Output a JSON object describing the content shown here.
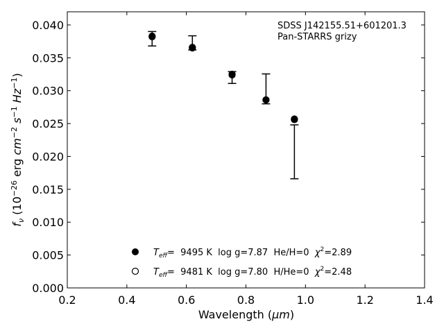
{
  "chart_data": {
    "type": "scatter",
    "annotation": [
      "SDSS J142155.51+601201.3",
      "Pan-STARRS grizy"
    ],
    "xlabel": {
      "main": "Wavelength (",
      "unit": "μm",
      "end": ")"
    },
    "ylabel": {
      "f": "f",
      "sub": "ν",
      "open": " (10",
      "exp": "−26",
      "erg": " erg ",
      "cm": "cm",
      "cmexp": "−2",
      "s": " s",
      "sexp": "−1",
      "hz": " Hz",
      "hzexp": "−1",
      "close": ")"
    },
    "xlim": [
      0.2,
      1.4
    ],
    "ylim": [
      0.0,
      0.042
    ],
    "xticks": [
      0.2,
      0.4,
      0.6,
      0.8,
      1.0,
      1.2,
      1.4
    ],
    "xtick_labels": [
      "0.2",
      "0.4",
      "0.6",
      "0.8",
      "1.0",
      "1.2",
      "1.4"
    ],
    "yticks": [
      0.0,
      0.005,
      0.01,
      0.015,
      0.02,
      0.025,
      0.03,
      0.035,
      0.04
    ],
    "ytick_labels": [
      "0.000",
      "0.005",
      "0.010",
      "0.015",
      "0.020",
      "0.025",
      "0.030",
      "0.035",
      "0.040"
    ],
    "observed": {
      "x": [
        0.4849,
        0.6201,
        0.7535,
        0.8674,
        0.9628
      ],
      "y": [
        0.0379,
        0.03655,
        0.032,
        0.02845,
        0.0208
      ],
      "yerr_low": [
        0.0011,
        0.00035,
        0.0009,
        0.00045,
        0.0042
      ],
      "yerr_high": [
        0.0011,
        0.0018,
        0.0009,
        0.0041,
        0.004
      ],
      "band": [
        "g",
        "r",
        "i",
        "z",
        "y"
      ]
    },
    "series": [
      {
        "marker": "filled",
        "teff_label": "T",
        "teff_sub": "eff",
        "text": "=  9495 K  log g=7.87  He/H=0  ",
        "chi_label": "χ",
        "chi_exp": "2",
        "chi_text": "=2.89",
        "x": [
          0.4849,
          0.6201,
          0.7535,
          0.8674,
          0.9628
        ],
        "y": [
          0.0383,
          0.0365,
          0.0324,
          0.0286,
          0.0257
        ]
      },
      {
        "marker": "open",
        "teff_label": "T",
        "teff_sub": "eff",
        "text": "=  9481 K  log g=7.80  H/He=0  ",
        "chi_label": "χ",
        "chi_exp": "2",
        "chi_text": "=2.48",
        "x": [
          0.4849,
          0.6201,
          0.7535,
          0.8674,
          0.9628
        ],
        "y": [
          0.0382,
          0.0366,
          0.0325,
          0.0286,
          0.0256
        ]
      }
    ],
    "legend_position": "lower-center",
    "grid": false
  },
  "colors": {
    "ink": "#000000",
    "background": "#ffffff"
  }
}
